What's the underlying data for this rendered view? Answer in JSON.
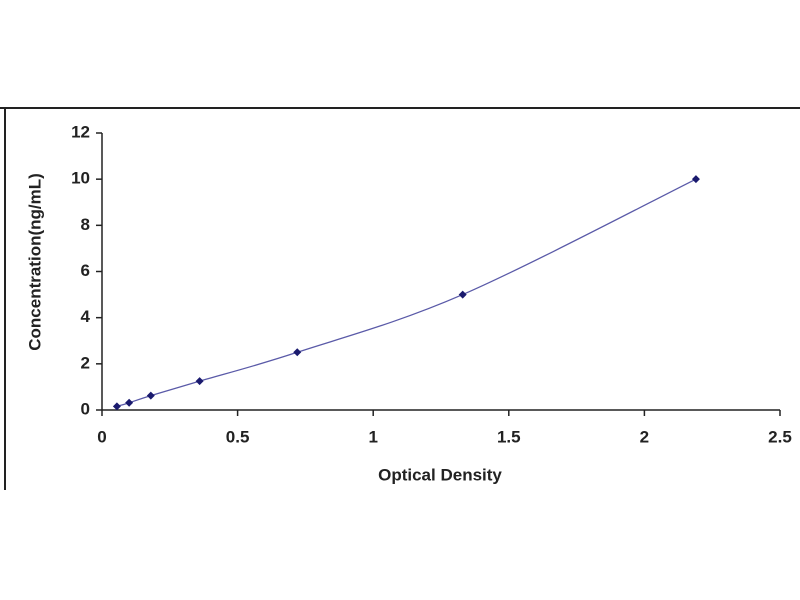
{
  "chart_data": {
    "type": "scatter",
    "x_label": "Optical Density",
    "y_label": "Concentration(ng/mL)",
    "x": [
      0.055,
      0.1,
      0.18,
      0.36,
      0.72,
      1.33,
      2.19
    ],
    "series": [
      {
        "color": "#1a1a6e",
        "values": [
          0.156,
          0.312,
          0.625,
          1.25,
          2.5,
          5,
          10
        ]
      }
    ],
    "line_color": "#5a5aa8",
    "xlim": [
      0,
      2.5
    ],
    "xticks": [
      0,
      0.5,
      1,
      1.5,
      2,
      2.5
    ],
    "ylim": [
      0,
      12
    ],
    "yticks": [
      0,
      2,
      4,
      6,
      8,
      10,
      12
    ]
  }
}
